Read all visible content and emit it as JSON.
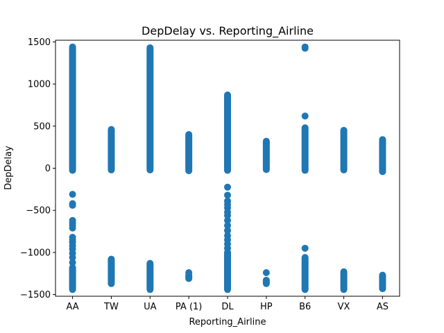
{
  "chart_data": {
    "type": "scatter",
    "title": "DepDelay vs. Reporting_Airline",
    "xlabel": "Reporting_Airline",
    "ylabel": "DepDelay",
    "categories": [
      "AA",
      "TW",
      "UA",
      "PA (1)",
      "DL",
      "HP",
      "B6",
      "VX",
      "AS"
    ],
    "ylim": [
      -1520,
      1520
    ],
    "yticks": [
      -1500,
      -1000,
      -500,
      0,
      500,
      1000,
      1500
    ],
    "ytick_labels": [
      "−1500",
      "−1000",
      "−500",
      "0",
      "500",
      "1000",
      "1500"
    ],
    "grid": false,
    "legend": "none",
    "marker_color": "#1f77b4",
    "series": [
      {
        "ranges": [
          {
            "category": "AA",
            "min": -25,
            "max": 1440
          },
          {
            "category": "AA",
            "min": -1440,
            "max": -1180
          },
          {
            "category": "TW",
            "min": -20,
            "max": 460
          },
          {
            "category": "TW",
            "min": -1370,
            "max": -1080
          },
          {
            "category": "UA",
            "min": -20,
            "max": 1430
          },
          {
            "category": "UA",
            "min": -1440,
            "max": -1130
          },
          {
            "category": "PA (1)",
            "min": -30,
            "max": 400
          },
          {
            "category": "PA (1)",
            "min": -1310,
            "max": -1270
          },
          {
            "category": "DL",
            "min": -25,
            "max": 870
          },
          {
            "category": "DL",
            "min": -1440,
            "max": -1000
          },
          {
            "category": "HP",
            "min": -15,
            "max": 320
          },
          {
            "category": "HP",
            "min": -1370,
            "max": -1330
          },
          {
            "category": "B6",
            "min": -25,
            "max": 480
          },
          {
            "category": "B6",
            "min": -1440,
            "max": -1060
          },
          {
            "category": "VX",
            "min": -20,
            "max": 450
          },
          {
            "category": "VX",
            "min": -1440,
            "max": -1230
          },
          {
            "category": "AS",
            "min": -40,
            "max": 340
          },
          {
            "category": "AS",
            "min": -1430,
            "max": -1270
          }
        ],
        "points": [
          {
            "category": "AA",
            "y": -310
          },
          {
            "category": "AA",
            "y": -420
          },
          {
            "category": "AA",
            "y": -440
          },
          {
            "category": "AA",
            "y": -620
          },
          {
            "category": "AA",
            "y": -650
          },
          {
            "category": "AA",
            "y": -680
          },
          {
            "category": "AA",
            "y": -710
          },
          {
            "category": "AA",
            "y": -820
          },
          {
            "category": "AA",
            "y": -850
          },
          {
            "category": "AA",
            "y": -880
          },
          {
            "category": "AA",
            "y": -920
          },
          {
            "category": "AA",
            "y": -960
          },
          {
            "category": "AA",
            "y": -1010
          },
          {
            "category": "AA",
            "y": -1060
          },
          {
            "category": "AA",
            "y": -1120
          },
          {
            "category": "UA",
            "y": 1195
          },
          {
            "category": "PA (1)",
            "y": -1240
          },
          {
            "category": "DL",
            "y": -225
          },
          {
            "category": "DL",
            "y": -320
          },
          {
            "category": "DL",
            "y": -390
          },
          {
            "category": "DL",
            "y": -430
          },
          {
            "category": "DL",
            "y": -470
          },
          {
            "category": "DL",
            "y": -520
          },
          {
            "category": "DL",
            "y": -560
          },
          {
            "category": "DL",
            "y": -620
          },
          {
            "category": "DL",
            "y": -680
          },
          {
            "category": "DL",
            "y": -740
          },
          {
            "category": "DL",
            "y": -800
          },
          {
            "category": "DL",
            "y": -850
          },
          {
            "category": "DL",
            "y": -900
          },
          {
            "category": "DL",
            "y": -950
          },
          {
            "category": "HP",
            "y": -1240
          },
          {
            "category": "B6",
            "y": 620
          },
          {
            "category": "B6",
            "y": 1425
          },
          {
            "category": "B6",
            "y": 1440
          },
          {
            "category": "B6",
            "y": -950
          }
        ]
      }
    ]
  }
}
